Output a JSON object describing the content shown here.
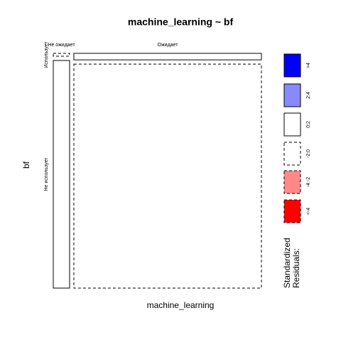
{
  "chart_data": {
    "type": "mosaic",
    "title": "machine_learning ~ bf",
    "x_label": "machine_learning",
    "y_label": "bf",
    "x_categories": [
      "Не ожидает",
      "Ожидает"
    ],
    "y_categories": [
      "Использует",
      "Не использует"
    ],
    "cells": [
      [
        0.001,
        0.079
      ],
      [
        0.026,
        0.894
      ]
    ],
    "cell_legend_index": [
      [
        3,
        2
      ],
      [
        2,
        3
      ]
    ],
    "legend_title": "Standardized\nResiduals:",
    "legend": [
      {
        "label": ">4",
        "color": "#0000ff",
        "dashed": false
      },
      {
        "label": "2:4",
        "color": "#8888ff",
        "dashed": false
      },
      {
        "label": "0:2",
        "color": "#ffffff",
        "dashed": false
      },
      {
        "label": "-2:0",
        "color": "#ffffff",
        "dashed": true
      },
      {
        "label": "-4:-2",
        "color": "#ff8888",
        "dashed": true
      },
      {
        "label": "<-4",
        "color": "#ff0000",
        "dashed": true
      }
    ]
  }
}
